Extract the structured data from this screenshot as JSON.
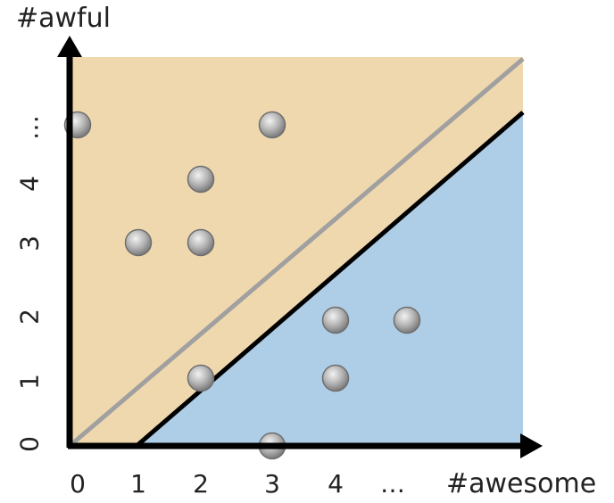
{
  "axes": {
    "x_label": "#awesome",
    "y_label": "#awful",
    "x_ticks": [
      "0",
      "1",
      "2",
      "3",
      "4",
      "…"
    ],
    "y_ticks": [
      "0",
      "1",
      "2",
      "3",
      "4",
      "…"
    ]
  },
  "regions": {
    "upper_color": "#EFD8AE",
    "lower_color": "#AECDE6"
  },
  "lines": {
    "diagonal_color": "#A0A0A0",
    "boundary_color": "#000000"
  },
  "points": [
    {
      "x": 0,
      "y": 5
    },
    {
      "x": 3,
      "y": 5
    },
    {
      "x": 2,
      "y": 4
    },
    {
      "x": 1,
      "y": 3
    },
    {
      "x": 2,
      "y": 3
    },
    {
      "x": 4,
      "y": 2
    },
    {
      "x": 5,
      "y": 2
    },
    {
      "x": 2,
      "y": 1
    },
    {
      "x": 4,
      "y": 1
    },
    {
      "x": 3,
      "y": 0
    }
  ]
}
